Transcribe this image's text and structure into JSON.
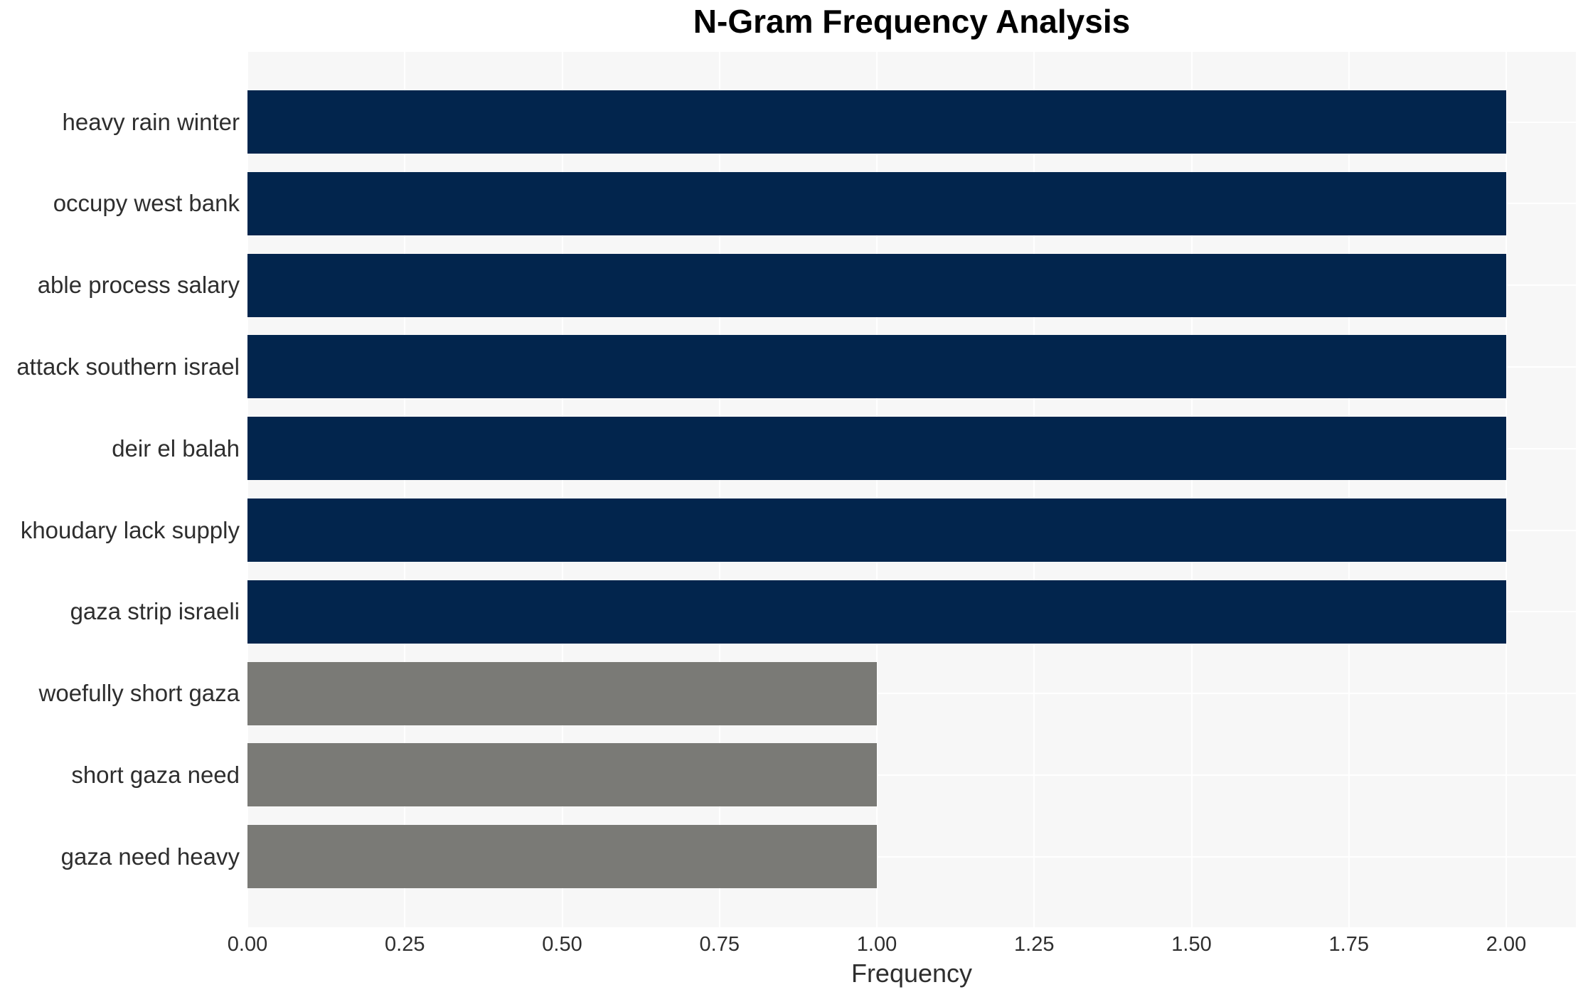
{
  "chart_data": {
    "type": "bar",
    "orientation": "horizontal",
    "title": "N-Gram Frequency Analysis",
    "xlabel": "Frequency",
    "ylabel": "",
    "categories": [
      "heavy rain winter",
      "occupy west bank",
      "able process salary",
      "attack southern israel",
      "deir el balah",
      "khoudary lack supply",
      "gaza strip israeli",
      "woefully short gaza",
      "short gaza need",
      "gaza need heavy"
    ],
    "values": [
      2,
      2,
      2,
      2,
      2,
      2,
      2,
      1,
      1,
      1
    ],
    "bar_colors": [
      "#02254d",
      "#02254d",
      "#02254d",
      "#02254d",
      "#02254d",
      "#02254d",
      "#02254d",
      "#7a7a76",
      "#7a7a76",
      "#7a7a76"
    ],
    "xlim": [
      0,
      2.11
    ],
    "xticks": [
      0,
      0.25,
      0.5,
      0.75,
      1.0,
      1.25,
      1.5,
      1.75,
      2.0
    ],
    "xtick_labels": [
      "0.00",
      "0.25",
      "0.50",
      "0.75",
      "1.00",
      "1.25",
      "1.50",
      "1.75",
      "2.00"
    ],
    "grid": true,
    "legend": false,
    "colors": {
      "plot_background": "#f7f7f7",
      "figure_background": "#ffffff",
      "gridline": "#ffffff",
      "text": "#2e2e2e",
      "title_text": "#000000"
    }
  }
}
